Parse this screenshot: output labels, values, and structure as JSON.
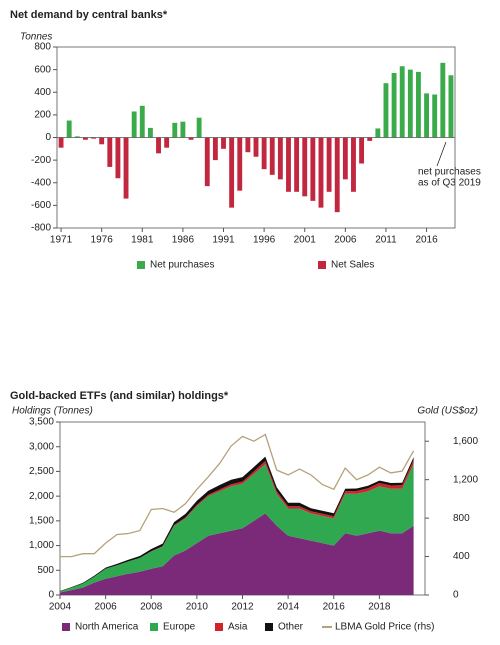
{
  "chart_data": [
    {
      "type": "bar",
      "title": "Net demand by central banks*",
      "y_label": "Tonnes",
      "x": [
        1971,
        1972,
        1973,
        1974,
        1975,
        1976,
        1977,
        1978,
        1979,
        1980,
        1981,
        1982,
        1983,
        1984,
        1985,
        1986,
        1987,
        1988,
        1989,
        1990,
        1991,
        1992,
        1993,
        1994,
        1995,
        1996,
        1997,
        1998,
        1999,
        2000,
        2001,
        2002,
        2003,
        2004,
        2005,
        2006,
        2007,
        2008,
        2009,
        2010,
        2011,
        2012,
        2013,
        2014,
        2015,
        2016,
        2017,
        2018,
        2019
      ],
      "series": [
        {
          "name": "Net purchases",
          "color": "#3aaa4a",
          "values": [
            null,
            150,
            10,
            null,
            null,
            null,
            null,
            null,
            null,
            230,
            280,
            85,
            null,
            null,
            130,
            140,
            null,
            175,
            null,
            null,
            null,
            null,
            null,
            null,
            null,
            null,
            null,
            null,
            null,
            null,
            null,
            null,
            null,
            null,
            null,
            null,
            null,
            null,
            null,
            80,
            480,
            570,
            630,
            600,
            580,
            390,
            380,
            660,
            550
          ]
        },
        {
          "name": "Net Sales",
          "color": "#c1273f",
          "values": [
            -90,
            null,
            null,
            -20,
            -10,
            -60,
            -260,
            -360,
            -540,
            null,
            null,
            null,
            -140,
            -90,
            null,
            null,
            -20,
            null,
            -430,
            -200,
            -100,
            -620,
            -470,
            -130,
            -170,
            -280,
            -330,
            -370,
            -480,
            -480,
            -520,
            -560,
            -620,
            -480,
            -660,
            -370,
            -480,
            -230,
            -30,
            null,
            null,
            null,
            null,
            null,
            null,
            null,
            null,
            null,
            null
          ]
        }
      ],
      "annotation": [
        "net purchases",
        "as of Q3 2019"
      ],
      "xlim": [
        1970.5,
        2019.5
      ],
      "xticks": [
        1971,
        1976,
        1981,
        1986,
        1991,
        1996,
        2001,
        2006,
        2011,
        2016
      ],
      "ylim": [
        -800,
        800
      ],
      "yticks": [
        -800,
        -600,
        -400,
        -200,
        0,
        200,
        400,
        600,
        800
      ],
      "grid": false,
      "legend": "bottom"
    },
    {
      "type": "area",
      "stacked": true,
      "title": "Gold-backed ETFs (and similar) holdings*",
      "y_label": "Holdings (Tonnes)",
      "y2_label": "Gold (US$oz)",
      "x": [
        2004,
        2004.5,
        2005,
        2005.5,
        2006,
        2006.5,
        2007,
        2007.5,
        2008,
        2008.5,
        2009,
        2009.5,
        2010,
        2010.5,
        2011,
        2011.5,
        2012,
        2012.5,
        2013,
        2013.5,
        2014,
        2014.5,
        2015,
        2015.5,
        2016,
        2016.5,
        2017,
        2017.5,
        2018,
        2018.5,
        2019,
        2019.5
      ],
      "series": [
        {
          "name": "North America",
          "color": "#7b2a79",
          "values": [
            50,
            100,
            150,
            250,
            330,
            380,
            430,
            470,
            530,
            580,
            800,
            900,
            1050,
            1200,
            1250,
            1300,
            1350,
            1500,
            1650,
            1400,
            1200,
            1150,
            1100,
            1050,
            1000,
            1250,
            1200,
            1250,
            1300,
            1250,
            1250,
            1400
          ]
        },
        {
          "name": "Europe",
          "color": "#2fa84f",
          "values": [
            20,
            50,
            80,
            120,
            200,
            220,
            250,
            280,
            350,
            400,
            600,
            650,
            750,
            800,
            850,
            900,
            900,
            950,
            1000,
            650,
            550,
            600,
            550,
            550,
            550,
            800,
            850,
            850,
            900,
            900,
            900,
            1250
          ]
        },
        {
          "name": "Asia",
          "color": "#d2232a",
          "values": [
            0,
            0,
            0,
            0,
            0,
            0,
            0,
            0,
            5,
            10,
            15,
            20,
            25,
            30,
            35,
            40,
            45,
            50,
            60,
            50,
            45,
            45,
            45,
            45,
            45,
            50,
            55,
            60,
            65,
            65,
            70,
            80
          ]
        },
        {
          "name": "Other",
          "color": "#111111",
          "values": [
            10,
            10,
            15,
            20,
            25,
            30,
            35,
            40,
            45,
            50,
            60,
            70,
            80,
            80,
            90,
            90,
            90,
            90,
            90,
            80,
            70,
            70,
            60,
            60,
            60,
            50,
            50,
            50,
            50,
            50,
            50,
            60
          ]
        },
        {
          "name": "LBMA Gold Price (rhs)",
          "color": "#b5a27a",
          "type": "line",
          "axis": "y2",
          "values": [
            400,
            400,
            430,
            430,
            540,
            630,
            640,
            670,
            890,
            900,
            860,
            950,
            1100,
            1230,
            1370,
            1550,
            1650,
            1600,
            1670,
            1300,
            1250,
            1310,
            1250,
            1150,
            1100,
            1320,
            1200,
            1250,
            1330,
            1270,
            1290,
            1500
          ]
        }
      ],
      "xlim": [
        2004,
        2020
      ],
      "xticks": [
        2004,
        2006,
        2008,
        2010,
        2012,
        2014,
        2016,
        2018
      ],
      "ylim": [
        0,
        3500
      ],
      "yticks": [
        0,
        500,
        {
          "value": 1000,
          "label": "1,000"
        },
        {
          "value": 1500,
          "label": "1,500"
        },
        {
          "value": 2000,
          "label": "2,000"
        },
        {
          "value": 2500,
          "label": "2,500"
        },
        {
          "value": 3000,
          "label": "3,000"
        },
        {
          "value": 3500,
          "label": "3,500"
        }
      ],
      "y2lim": [
        0,
        1800
      ],
      "y2ticks": [
        0,
        400,
        800,
        {
          "value": 1200,
          "label": "1,200"
        },
        {
          "value": 1600,
          "label": "1,600"
        }
      ],
      "grid": false,
      "legend": "bottom"
    }
  ]
}
